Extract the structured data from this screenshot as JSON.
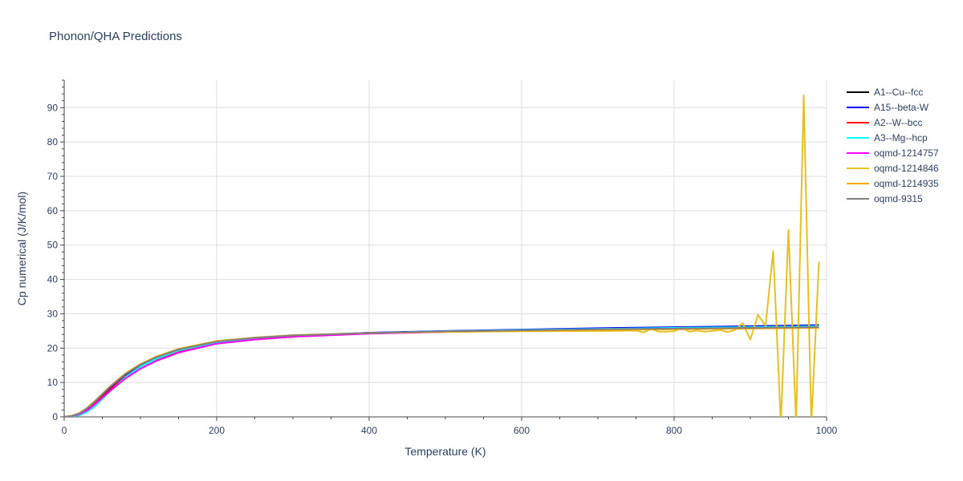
{
  "chart_data": {
    "type": "line",
    "title": "Phonon/QHA Predictions",
    "xlabel": "Temperature (K)",
    "ylabel": "Cp numerical (J/K/mol)",
    "xlim": [
      0,
      1000
    ],
    "ylim": [
      0,
      98
    ],
    "xticks": [
      0,
      200,
      400,
      600,
      800,
      1000
    ],
    "yticks": [
      0,
      10,
      20,
      30,
      40,
      50,
      60,
      70,
      80,
      90
    ],
    "grid": true,
    "legend_position": "right",
    "series": [
      {
        "name": "A1--Cu--fcc",
        "color": "#000000",
        "x": [
          0,
          10,
          20,
          30,
          40,
          60,
          80,
          100,
          120,
          150,
          200,
          250,
          300,
          400,
          500,
          600,
          700,
          800,
          900,
          990
        ],
        "y": [
          0,
          0.3,
          1.0,
          2.4,
          4.3,
          8.5,
          12.2,
          15.0,
          17.0,
          19.4,
          21.8,
          22.9,
          23.6,
          24.4,
          24.9,
          25.3,
          25.6,
          25.9,
          26.2,
          26.5
        ]
      },
      {
        "name": "A15--beta-W",
        "color": "#0000ff",
        "x": [
          0,
          10,
          20,
          30,
          40,
          60,
          80,
          100,
          120,
          150,
          200,
          250,
          300,
          400,
          500,
          600,
          700,
          800,
          900,
          990
        ],
        "y": [
          0,
          0.25,
          0.9,
          2.2,
          4.0,
          8.2,
          12.0,
          14.9,
          17.0,
          19.3,
          21.7,
          22.9,
          23.6,
          24.5,
          25.0,
          25.4,
          25.8,
          26.1,
          26.4,
          26.7
        ]
      },
      {
        "name": "A2--W--bcc",
        "color": "#ff0000",
        "x": [
          0,
          10,
          20,
          30,
          40,
          60,
          80,
          100,
          120,
          150,
          200,
          250,
          300,
          400,
          500,
          600,
          700,
          800,
          900,
          990
        ],
        "y": [
          0,
          0.2,
          0.8,
          2.0,
          3.8,
          7.9,
          11.7,
          14.6,
          16.7,
          19.1,
          21.6,
          22.8,
          23.5,
          24.3,
          24.8,
          25.2,
          25.5,
          25.8,
          26.0,
          26.3
        ]
      },
      {
        "name": "A3--Mg--hcp",
        "color": "#00ffff",
        "x": [
          0,
          10,
          20,
          30,
          40,
          60,
          80,
          100,
          120,
          150,
          200,
          250,
          300,
          400,
          500,
          600,
          700,
          800,
          900,
          990
        ],
        "y": [
          0,
          0.1,
          0.5,
          1.4,
          3.0,
          7.4,
          11.5,
          14.6,
          16.8,
          19.3,
          21.7,
          22.9,
          23.6,
          24.4,
          24.9,
          25.3,
          25.6,
          25.9,
          26.1,
          26.4
        ]
      },
      {
        "name": "oqmd-1214757",
        "color": "#ff00ff",
        "x": [
          0,
          10,
          20,
          30,
          40,
          60,
          80,
          100,
          120,
          150,
          200,
          250,
          300,
          400,
          500,
          600,
          700,
          800,
          900,
          990
        ],
        "y": [
          0,
          0.2,
          0.8,
          1.9,
          3.6,
          7.5,
          11.1,
          14.0,
          16.2,
          18.7,
          21.3,
          22.5,
          23.3,
          24.2,
          24.7,
          25.1,
          25.4,
          25.6,
          25.8,
          26.0
        ]
      },
      {
        "name": "oqmd-1214846",
        "color": "#e6c020",
        "x": [
          0,
          10,
          20,
          30,
          40,
          60,
          80,
          100,
          120,
          150,
          200,
          250,
          300,
          400,
          500,
          600,
          700,
          750,
          760,
          770,
          780,
          790,
          800,
          810,
          820,
          830,
          840,
          850,
          860,
          870,
          880,
          890,
          900,
          910,
          920,
          930,
          940,
          950,
          960,
          970,
          980,
          990
        ],
        "y": [
          0,
          0.3,
          1.1,
          2.6,
          4.6,
          8.9,
          12.6,
          15.4,
          17.5,
          19.8,
          22.1,
          23.1,
          23.8,
          24.4,
          24.7,
          24.9,
          25.0,
          25.1,
          24.6,
          25.6,
          24.8,
          24.8,
          24.9,
          25.9,
          24.8,
          25.1,
          24.8,
          25.0,
          25.3,
          24.7,
          25.3,
          27.3,
          22.5,
          29.7,
          26.5,
          48.3,
          -2,
          54.4,
          -2,
          93.6,
          -2,
          45.2
        ]
      },
      {
        "name": "oqmd-1214935",
        "color": "#ffa500",
        "x": [
          0,
          10,
          20,
          30,
          40,
          60,
          80,
          100,
          120,
          150,
          200,
          250,
          300,
          400,
          500,
          600,
          700,
          800,
          900,
          990
        ],
        "y": [
          0,
          0.3,
          1.1,
          2.6,
          4.5,
          8.8,
          12.5,
          15.3,
          17.4,
          19.7,
          22.0,
          23.0,
          23.7,
          24.4,
          24.8,
          25.1,
          25.3,
          25.5,
          25.7,
          25.9
        ]
      },
      {
        "name": "oqmd-9315",
        "color": "#808080",
        "x": [
          0,
          10,
          20,
          30,
          40,
          60,
          80,
          100,
          120,
          150,
          200,
          250,
          300,
          400,
          500,
          600,
          700,
          800,
          900,
          990
        ],
        "y": [
          0,
          0.3,
          1.0,
          2.5,
          4.4,
          8.7,
          12.4,
          15.2,
          17.3,
          19.6,
          21.9,
          23.0,
          23.7,
          24.4,
          24.9,
          25.2,
          25.5,
          25.7,
          25.9,
          26.1
        ]
      }
    ]
  }
}
